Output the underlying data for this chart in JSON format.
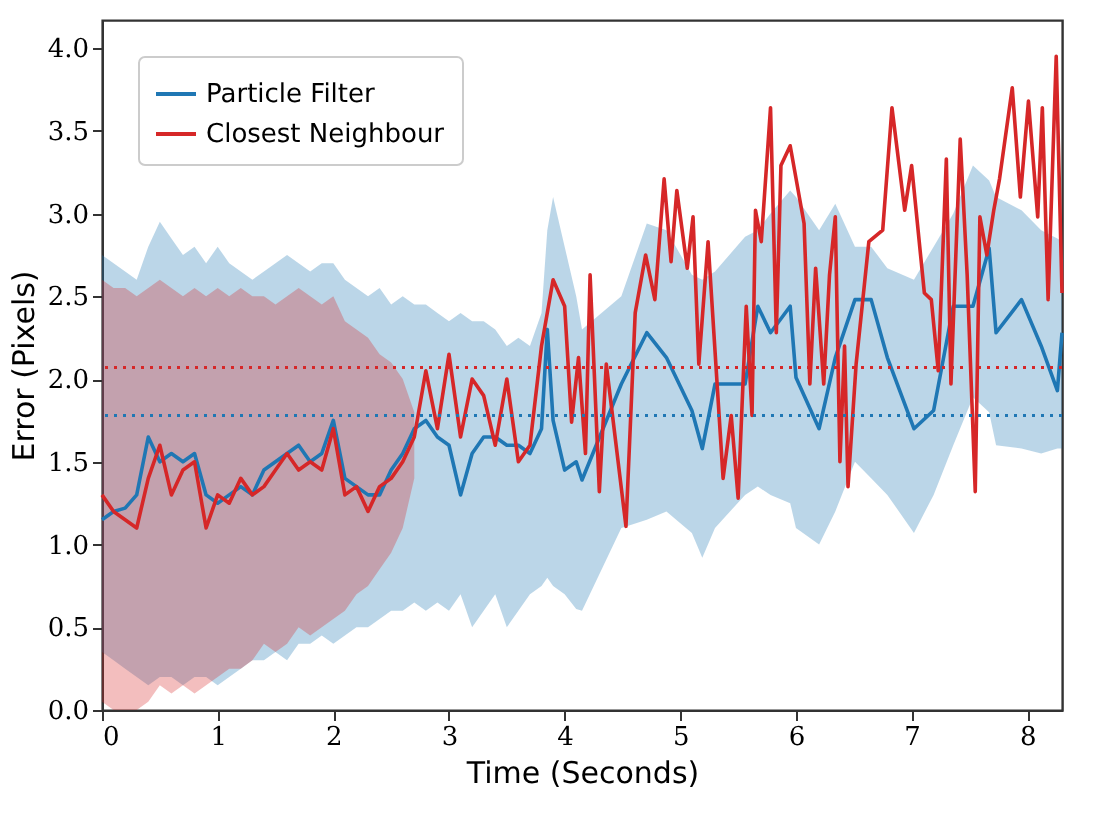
{
  "chart_data": {
    "type": "line",
    "xlabel": "Time (Seconds)",
    "ylabel": "Error (Pixels)",
    "xlim": [
      0,
      8.3
    ],
    "ylim": [
      0,
      4.17
    ],
    "xticks": [
      0,
      1,
      2,
      3,
      4,
      5,
      6,
      7,
      8
    ],
    "yticks": [
      {
        "value": 0,
        "label": "0.0"
      },
      {
        "value": 0.5,
        "label": "0.5"
      },
      {
        "value": 1,
        "label": "1.0"
      },
      {
        "value": 1.5,
        "label": "1.5"
      },
      {
        "value": 2,
        "label": "2.0"
      },
      {
        "value": 2.5,
        "label": "2.5"
      },
      {
        "value": 3,
        "label": "3.0"
      },
      {
        "value": 3.5,
        "label": "3.5"
      },
      {
        "value": 4,
        "label": "4.0"
      }
    ],
    "grid": false,
    "legend": "top left",
    "line_style": "solid",
    "series": [
      {
        "name": "Particle Filter",
        "color": "#1f77b4",
        "x": [
          0,
          0.1,
          0.2,
          0.3,
          0.4,
          0.5,
          0.6,
          0.7,
          0.8,
          0.9,
          1.0,
          1.1,
          1.2,
          1.3,
          1.4,
          1.5,
          1.6,
          1.7,
          1.8,
          1.9,
          2.0,
          2.1,
          2.2,
          2.3,
          2.4,
          2.5,
          2.6,
          2.7,
          2.8,
          2.9,
          3.0,
          3.1,
          3.2,
          3.3,
          3.4,
          3.5,
          3.6,
          3.7,
          3.8,
          3.85,
          3.9,
          4.0,
          4.1,
          4.15,
          4.49,
          4.71,
          4.88,
          5.1,
          5.19,
          5.3,
          5.56,
          5.67,
          5.78,
          5.95,
          6.0,
          6.2,
          6.34,
          6.51,
          6.65,
          6.79,
          7.02,
          7.19,
          7.36,
          7.53,
          7.67,
          7.73,
          7.95,
          8.12,
          8.26,
          8.3
        ],
        "values": [
          1.15,
          1.2,
          1.22,
          1.3,
          1.65,
          1.5,
          1.55,
          1.5,
          1.55,
          1.3,
          1.25,
          1.3,
          1.35,
          1.3,
          1.45,
          1.5,
          1.55,
          1.6,
          1.5,
          1.55,
          1.75,
          1.4,
          1.35,
          1.3,
          1.3,
          1.45,
          1.55,
          1.7,
          1.75,
          1.65,
          1.6,
          1.3,
          1.55,
          1.65,
          1.65,
          1.6,
          1.6,
          1.55,
          1.7,
          2.3,
          1.75,
          1.45,
          1.5,
          1.39,
          1.97,
          2.28,
          2.13,
          1.81,
          1.58,
          1.97,
          1.97,
          2.44,
          2.28,
          2.44,
          2.01,
          1.7,
          2.13,
          2.48,
          2.48,
          2.13,
          1.7,
          1.81,
          2.44,
          2.44,
          2.79,
          2.28,
          2.48,
          2.2,
          1.93,
          2.28
        ],
        "upper": [
          2.75,
          2.7,
          2.65,
          2.6,
          2.8,
          2.95,
          2.85,
          2.75,
          2.8,
          2.7,
          2.8,
          2.7,
          2.65,
          2.6,
          2.65,
          2.7,
          2.75,
          2.7,
          2.65,
          2.7,
          2.7,
          2.6,
          2.55,
          2.5,
          2.55,
          2.45,
          2.5,
          2.45,
          2.45,
          2.4,
          2.35,
          2.4,
          2.35,
          2.35,
          2.3,
          2.2,
          2.25,
          2.2,
          2.4,
          2.9,
          3.1,
          2.8,
          2.5,
          2.3,
          2.5,
          2.94,
          2.9,
          2.63,
          2.6,
          2.65,
          2.86,
          2.9,
          3.0,
          3.14,
          3.1,
          2.9,
          3.06,
          2.8,
          2.8,
          2.67,
          2.6,
          2.8,
          3.0,
          3.29,
          3.2,
          3.1,
          3.02,
          2.9,
          2.85,
          2.83
        ],
        "lower": [
          0.35,
          0.3,
          0.25,
          0.2,
          0.15,
          0.2,
          0.2,
          0.15,
          0.2,
          0.2,
          0.15,
          0.2,
          0.25,
          0.3,
          0.3,
          0.35,
          0.3,
          0.4,
          0.4,
          0.45,
          0.4,
          0.45,
          0.5,
          0.5,
          0.55,
          0.6,
          0.6,
          0.65,
          0.6,
          0.65,
          0.6,
          0.7,
          0.5,
          0.6,
          0.7,
          0.5,
          0.6,
          0.7,
          0.75,
          0.8,
          0.75,
          0.7,
          0.61,
          0.6,
          1.1,
          1.15,
          1.2,
          1.07,
          0.92,
          1.1,
          1.3,
          1.35,
          1.3,
          1.25,
          1.1,
          1.0,
          1.2,
          1.5,
          1.4,
          1.3,
          1.07,
          1.3,
          1.6,
          1.89,
          1.8,
          1.6,
          1.58,
          1.55,
          1.58,
          1.58
        ]
      },
      {
        "name": "Closest Neighbour",
        "color": "#d62728",
        "x": [
          0,
          0.1,
          0.2,
          0.3,
          0.4,
          0.5,
          0.6,
          0.7,
          0.8,
          0.9,
          1.0,
          1.1,
          1.2,
          1.3,
          1.4,
          1.5,
          1.6,
          1.7,
          1.8,
          1.9,
          2.0,
          2.1,
          2.2,
          2.3,
          2.4,
          2.5,
          2.6,
          2.7,
          2.8,
          2.9,
          3.0,
          3.1,
          3.2,
          3.3,
          3.4,
          3.5,
          3.6,
          3.7,
          3.8,
          3.9,
          4.0,
          4.06,
          4.12,
          4.18,
          4.22,
          4.3,
          4.36,
          4.53,
          4.61,
          4.7,
          4.78,
          4.86,
          4.92,
          4.97,
          5.06,
          5.11,
          5.16,
          5.24,
          5.37,
          5.44,
          5.5,
          5.57,
          5.62,
          5.65,
          5.7,
          5.78,
          5.83,
          5.87,
          5.95,
          6.07,
          6.12,
          6.17,
          6.24,
          6.29,
          6.34,
          6.38,
          6.42,
          6.45,
          6.52,
          6.63,
          6.75,
          6.83,
          6.94,
          7.0,
          7.11,
          7.17,
          7.23,
          7.3,
          7.34,
          7.42,
          7.48,
          7.55,
          7.59,
          7.65,
          7.71,
          7.76,
          7.87,
          7.94,
          8.01,
          8.09,
          8.13,
          8.18,
          8.25,
          8.3
        ],
        "values": [
          1.3,
          1.2,
          1.15,
          1.1,
          1.4,
          1.6,
          1.3,
          1.45,
          1.5,
          1.1,
          1.3,
          1.25,
          1.4,
          1.3,
          1.35,
          1.45,
          1.55,
          1.45,
          1.5,
          1.45,
          1.7,
          1.3,
          1.35,
          1.2,
          1.35,
          1.4,
          1.5,
          1.65,
          2.05,
          1.7,
          2.15,
          1.65,
          2.0,
          1.9,
          1.6,
          2.0,
          1.5,
          1.6,
          2.2,
          2.6,
          2.44,
          1.74,
          2.13,
          1.55,
          2.63,
          1.32,
          2.09,
          1.11,
          2.4,
          2.75,
          2.48,
          3.21,
          2.71,
          3.14,
          2.67,
          2.98,
          2.09,
          2.83,
          1.4,
          1.78,
          1.28,
          2.44,
          1.78,
          3.02,
          2.83,
          3.64,
          2.28,
          3.29,
          3.41,
          2.94,
          1.97,
          2.67,
          1.97,
          2.63,
          2.98,
          1.5,
          2.2,
          1.35,
          2.09,
          2.83,
          2.9,
          3.64,
          3.02,
          3.29,
          2.52,
          2.48,
          2.05,
          3.33,
          1.97,
          3.45,
          2.63,
          1.32,
          2.98,
          2.75,
          3.02,
          3.21,
          3.76,
          3.1,
          3.68,
          2.98,
          3.64,
          2.48,
          3.95,
          2.52
        ],
        "upper": [
          2.6,
          2.55,
          2.55,
          2.5,
          2.55,
          2.6,
          2.55,
          2.5,
          2.55,
          2.5,
          2.55,
          2.5,
          2.55,
          2.5,
          2.5,
          2.45,
          2.5,
          2.55,
          2.5,
          2.45,
          2.5,
          2.35,
          2.3,
          2.25,
          2.15,
          2.1,
          2.0,
          1.8,
          null,
          null,
          null,
          null,
          null,
          null,
          null,
          null,
          null,
          null,
          null,
          null,
          null,
          null,
          null,
          null,
          null,
          null,
          null,
          null,
          null,
          null,
          null,
          null,
          null,
          null,
          null,
          null,
          null,
          null,
          null,
          null,
          null,
          null,
          null,
          null,
          null,
          null,
          null,
          null,
          null,
          null,
          null,
          null,
          null,
          null,
          null,
          null,
          null,
          null,
          null,
          null,
          null,
          null,
          null,
          null,
          null,
          null,
          null,
          null,
          null,
          null,
          null,
          null,
          null,
          null,
          null,
          null,
          null,
          null,
          null,
          null,
          null,
          null,
          null,
          null
        ],
        "lower": [
          0.05,
          0.0,
          0.0,
          0.0,
          0.05,
          0.15,
          0.1,
          0.15,
          0.1,
          0.15,
          0.2,
          0.25,
          0.25,
          0.3,
          0.4,
          0.35,
          0.4,
          0.5,
          0.45,
          0.5,
          0.55,
          0.6,
          0.7,
          0.75,
          0.85,
          0.95,
          1.1,
          1.4,
          null,
          null,
          null,
          null,
          null,
          null,
          null,
          null,
          null,
          null,
          null,
          null,
          null,
          null,
          null,
          null,
          null,
          null,
          null,
          null,
          null,
          null,
          null,
          null,
          null,
          null,
          null,
          null,
          null,
          null,
          null,
          null,
          null,
          null,
          null,
          null,
          null,
          null,
          null,
          null,
          null,
          null,
          null,
          null,
          null,
          null,
          null,
          null,
          null,
          null,
          null,
          null,
          null,
          null,
          null,
          null,
          null,
          null,
          null,
          null,
          null,
          null,
          null,
          null,
          null,
          null,
          null,
          null,
          null,
          null,
          null,
          null,
          null,
          null,
          null,
          null
        ]
      }
    ],
    "ref_lines": [
      {
        "axis": "y",
        "value": 2.07,
        "color": "#d62728",
        "line_style": "dotted"
      },
      {
        "axis": "y",
        "value": 1.78,
        "color": "#1f77b4",
        "line_style": "dotted"
      }
    ]
  }
}
